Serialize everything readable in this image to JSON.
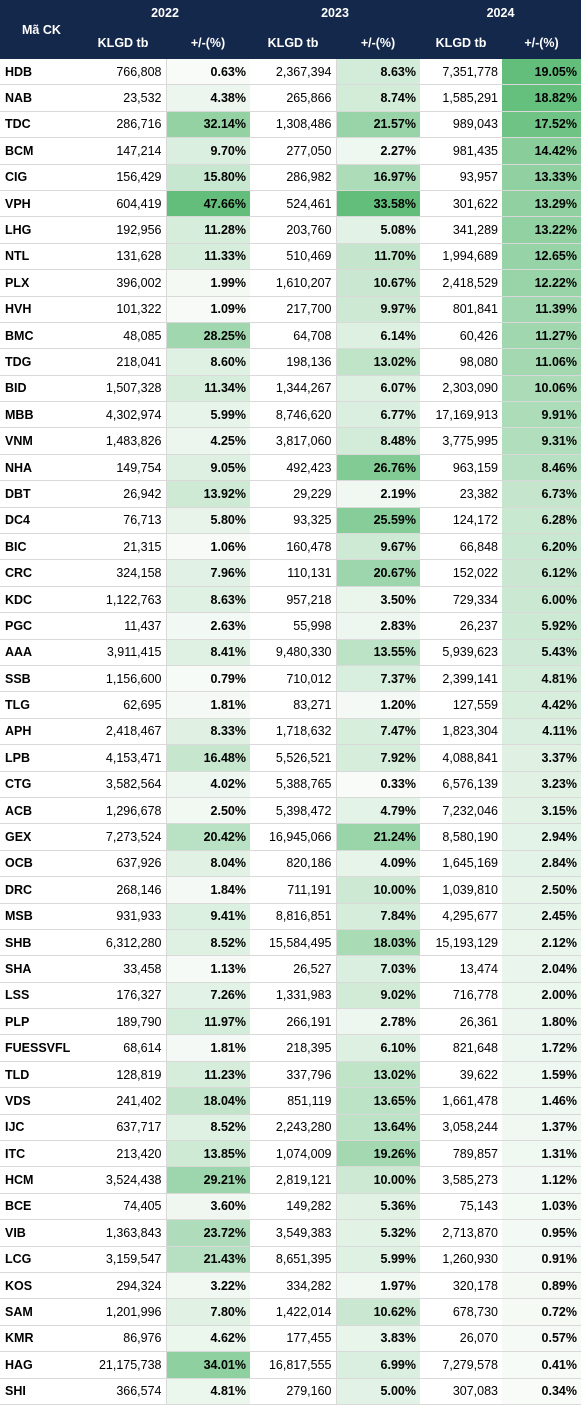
{
  "header": {
    "code_label": "Mã CK",
    "years": [
      "2022",
      "2023",
      "2024"
    ],
    "vol_label": "KLGD tb",
    "pct_label": "+/-(%)"
  },
  "colors": {
    "header_bg": "#14284b",
    "low": "#f8fbf8",
    "high": "#63be7b"
  },
  "rows": [
    {
      "code": "HDB",
      "v22": "766,808",
      "p22": "0.63%",
      "v23": "2,367,394",
      "p23": "8.63%",
      "v24": "7,351,778",
      "p24": "19.05%"
    },
    {
      "code": "NAB",
      "v22": "23,532",
      "p22": "4.38%",
      "v23": "265,866",
      "p23": "8.74%",
      "v24": "1,585,291",
      "p24": "18.82%"
    },
    {
      "code": "TDC",
      "v22": "286,716",
      "p22": "32.14%",
      "v23": "1,308,486",
      "p23": "21.57%",
      "v24": "989,043",
      "p24": "17.52%"
    },
    {
      "code": "BCM",
      "v22": "147,214",
      "p22": "9.70%",
      "v23": "277,050",
      "p23": "2.27%",
      "v24": "981,435",
      "p24": "14.42%"
    },
    {
      "code": "CIG",
      "v22": "156,429",
      "p22": "15.80%",
      "v23": "286,982",
      "p23": "16.97%",
      "v24": "93,957",
      "p24": "13.33%"
    },
    {
      "code": "VPH",
      "v22": "604,419",
      "p22": "47.66%",
      "v23": "524,461",
      "p23": "33.58%",
      "v24": "301,622",
      "p24": "13.29%"
    },
    {
      "code": "LHG",
      "v22": "192,956",
      "p22": "11.28%",
      "v23": "203,760",
      "p23": "5.08%",
      "v24": "341,289",
      "p24": "13.22%"
    },
    {
      "code": "NTL",
      "v22": "131,628",
      "p22": "11.33%",
      "v23": "510,469",
      "p23": "11.70%",
      "v24": "1,994,689",
      "p24": "12.65%"
    },
    {
      "code": "PLX",
      "v22": "396,002",
      "p22": "1.99%",
      "v23": "1,610,207",
      "p23": "10.67%",
      "v24": "2,418,529",
      "p24": "12.22%"
    },
    {
      "code": "HVH",
      "v22": "101,322",
      "p22": "1.09%",
      "v23": "217,700",
      "p23": "9.97%",
      "v24": "801,841",
      "p24": "11.39%"
    },
    {
      "code": "BMC",
      "v22": "48,085",
      "p22": "28.25%",
      "v23": "64,708",
      "p23": "6.14%",
      "v24": "60,426",
      "p24": "11.27%"
    },
    {
      "code": "TDG",
      "v22": "218,041",
      "p22": "8.60%",
      "v23": "198,136",
      "p23": "13.02%",
      "v24": "98,080",
      "p24": "11.06%"
    },
    {
      "code": "BID",
      "v22": "1,507,328",
      "p22": "11.34%",
      "v23": "1,344,267",
      "p23": "6.07%",
      "v24": "2,303,090",
      "p24": "10.06%"
    },
    {
      "code": "MBB",
      "v22": "4,302,974",
      "p22": "5.99%",
      "v23": "8,746,620",
      "p23": "6.77%",
      "v24": "17,169,913",
      "p24": "9.91%"
    },
    {
      "code": "VNM",
      "v22": "1,483,826",
      "p22": "4.25%",
      "v23": "3,817,060",
      "p23": "8.48%",
      "v24": "3,775,995",
      "p24": "9.31%"
    },
    {
      "code": "NHA",
      "v22": "149,754",
      "p22": "9.05%",
      "v23": "492,423",
      "p23": "26.76%",
      "v24": "963,159",
      "p24": "8.46%"
    },
    {
      "code": "DBT",
      "v22": "26,942",
      "p22": "13.92%",
      "v23": "29,229",
      "p23": "2.19%",
      "v24": "23,382",
      "p24": "6.73%"
    },
    {
      "code": "DC4",
      "v22": "76,713",
      "p22": "5.80%",
      "v23": "93,325",
      "p23": "25.59%",
      "v24": "124,172",
      "p24": "6.28%"
    },
    {
      "code": "BIC",
      "v22": "21,315",
      "p22": "1.06%",
      "v23": "160,478",
      "p23": "9.67%",
      "v24": "66,848",
      "p24": "6.20%"
    },
    {
      "code": "CRC",
      "v22": "324,158",
      "p22": "7.96%",
      "v23": "110,131",
      "p23": "20.67%",
      "v24": "152,022",
      "p24": "6.12%"
    },
    {
      "code": "KDC",
      "v22": "1,122,763",
      "p22": "8.63%",
      "v23": "957,218",
      "p23": "3.50%",
      "v24": "729,334",
      "p24": "6.00%"
    },
    {
      "code": "PGC",
      "v22": "11,437",
      "p22": "2.63%",
      "v23": "55,998",
      "p23": "2.83%",
      "v24": "26,237",
      "p24": "5.92%"
    },
    {
      "code": "AAA",
      "v22": "3,911,415",
      "p22": "8.41%",
      "v23": "9,480,330",
      "p23": "13.55%",
      "v24": "5,939,623",
      "p24": "5.43%"
    },
    {
      "code": "SSB",
      "v22": "1,156,600",
      "p22": "0.79%",
      "v23": "710,012",
      "p23": "7.37%",
      "v24": "2,399,141",
      "p24": "4.81%"
    },
    {
      "code": "TLG",
      "v22": "62,695",
      "p22": "1.81%",
      "v23": "83,271",
      "p23": "1.20%",
      "v24": "127,559",
      "p24": "4.42%"
    },
    {
      "code": "APH",
      "v22": "2,418,467",
      "p22": "8.33%",
      "v23": "1,718,632",
      "p23": "7.47%",
      "v24": "1,823,304",
      "p24": "4.11%"
    },
    {
      "code": "LPB",
      "v22": "4,153,471",
      "p22": "16.48%",
      "v23": "5,526,521",
      "p23": "7.92%",
      "v24": "4,088,841",
      "p24": "3.37%"
    },
    {
      "code": "CTG",
      "v22": "3,582,564",
      "p22": "4.02%",
      "v23": "5,388,765",
      "p23": "0.33%",
      "v24": "6,576,139",
      "p24": "3.23%"
    },
    {
      "code": "ACB",
      "v22": "1,296,678",
      "p22": "2.50%",
      "v23": "5,398,472",
      "p23": "4.79%",
      "v24": "7,232,046",
      "p24": "3.15%"
    },
    {
      "code": "GEX",
      "v22": "7,273,524",
      "p22": "20.42%",
      "v23": "16,945,066",
      "p23": "21.24%",
      "v24": "8,580,190",
      "p24": "2.94%"
    },
    {
      "code": "OCB",
      "v22": "637,926",
      "p22": "8.04%",
      "v23": "820,186",
      "p23": "4.09%",
      "v24": "1,645,169",
      "p24": "2.84%"
    },
    {
      "code": "DRC",
      "v22": "268,146",
      "p22": "1.84%",
      "v23": "711,191",
      "p23": "10.00%",
      "v24": "1,039,810",
      "p24": "2.50%"
    },
    {
      "code": "MSB",
      "v22": "931,933",
      "p22": "9.41%",
      "v23": "8,816,851",
      "p23": "7.84%",
      "v24": "4,295,677",
      "p24": "2.45%"
    },
    {
      "code": "SHB",
      "v22": "6,312,280",
      "p22": "8.52%",
      "v23": "15,584,495",
      "p23": "18.03%",
      "v24": "15,193,129",
      "p24": "2.12%"
    },
    {
      "code": "SHA",
      "v22": "33,458",
      "p22": "1.13%",
      "v23": "26,527",
      "p23": "7.03%",
      "v24": "13,474",
      "p24": "2.04%"
    },
    {
      "code": "LSS",
      "v22": "176,327",
      "p22": "7.26%",
      "v23": "1,331,983",
      "p23": "9.02%",
      "v24": "716,778",
      "p24": "2.00%"
    },
    {
      "code": "PLP",
      "v22": "189,790",
      "p22": "11.97%",
      "v23": "266,191",
      "p23": "2.78%",
      "v24": "26,361",
      "p24": "1.80%"
    },
    {
      "code": "FUESSVFL",
      "v22": "68,614",
      "p22": "1.81%",
      "v23": "218,395",
      "p23": "6.10%",
      "v24": "821,648",
      "p24": "1.72%"
    },
    {
      "code": "TLD",
      "v22": "128,819",
      "p22": "11.23%",
      "v23": "337,796",
      "p23": "13.02%",
      "v24": "39,622",
      "p24": "1.59%"
    },
    {
      "code": "VDS",
      "v22": "241,402",
      "p22": "18.04%",
      "v23": "851,119",
      "p23": "13.65%",
      "v24": "1,661,478",
      "p24": "1.46%"
    },
    {
      "code": "IJC",
      "v22": "637,717",
      "p22": "8.52%",
      "v23": "2,243,280",
      "p23": "13.64%",
      "v24": "3,058,244",
      "p24": "1.37%"
    },
    {
      "code": "ITC",
      "v22": "213,420",
      "p22": "13.85%",
      "v23": "1,074,009",
      "p23": "19.26%",
      "v24": "789,857",
      "p24": "1.31%"
    },
    {
      "code": "HCM",
      "v22": "3,524,438",
      "p22": "29.21%",
      "v23": "2,819,121",
      "p23": "10.00%",
      "v24": "3,585,273",
      "p24": "1.12%"
    },
    {
      "code": "BCE",
      "v22": "74,405",
      "p22": "3.60%",
      "v23": "149,282",
      "p23": "5.36%",
      "v24": "75,143",
      "p24": "1.03%"
    },
    {
      "code": "VIB",
      "v22": "1,363,843",
      "p22": "23.72%",
      "v23": "3,549,383",
      "p23": "5.32%",
      "v24": "2,713,870",
      "p24": "0.95%"
    },
    {
      "code": "LCG",
      "v22": "3,159,547",
      "p22": "21.43%",
      "v23": "8,651,395",
      "p23": "5.99%",
      "v24": "1,260,930",
      "p24": "0.91%"
    },
    {
      "code": "KOS",
      "v22": "294,324",
      "p22": "3.22%",
      "v23": "334,282",
      "p23": "1.97%",
      "v24": "320,178",
      "p24": "0.89%"
    },
    {
      "code": "SAM",
      "v22": "1,201,996",
      "p22": "7.80%",
      "v23": "1,422,014",
      "p23": "10.62%",
      "v24": "678,730",
      "p24": "0.72%"
    },
    {
      "code": "KMR",
      "v22": "86,976",
      "p22": "4.62%",
      "v23": "177,455",
      "p23": "3.83%",
      "v24": "26,070",
      "p24": "0.57%"
    },
    {
      "code": "HAG",
      "v22": "21,175,738",
      "p22": "34.01%",
      "v23": "16,817,555",
      "p23": "6.99%",
      "v24": "7,279,578",
      "p24": "0.41%"
    },
    {
      "code": "SHI",
      "v22": "366,574",
      "p22": "4.81%",
      "v23": "279,160",
      "p23": "5.00%",
      "v24": "307,083",
      "p24": "0.34%"
    }
  ]
}
